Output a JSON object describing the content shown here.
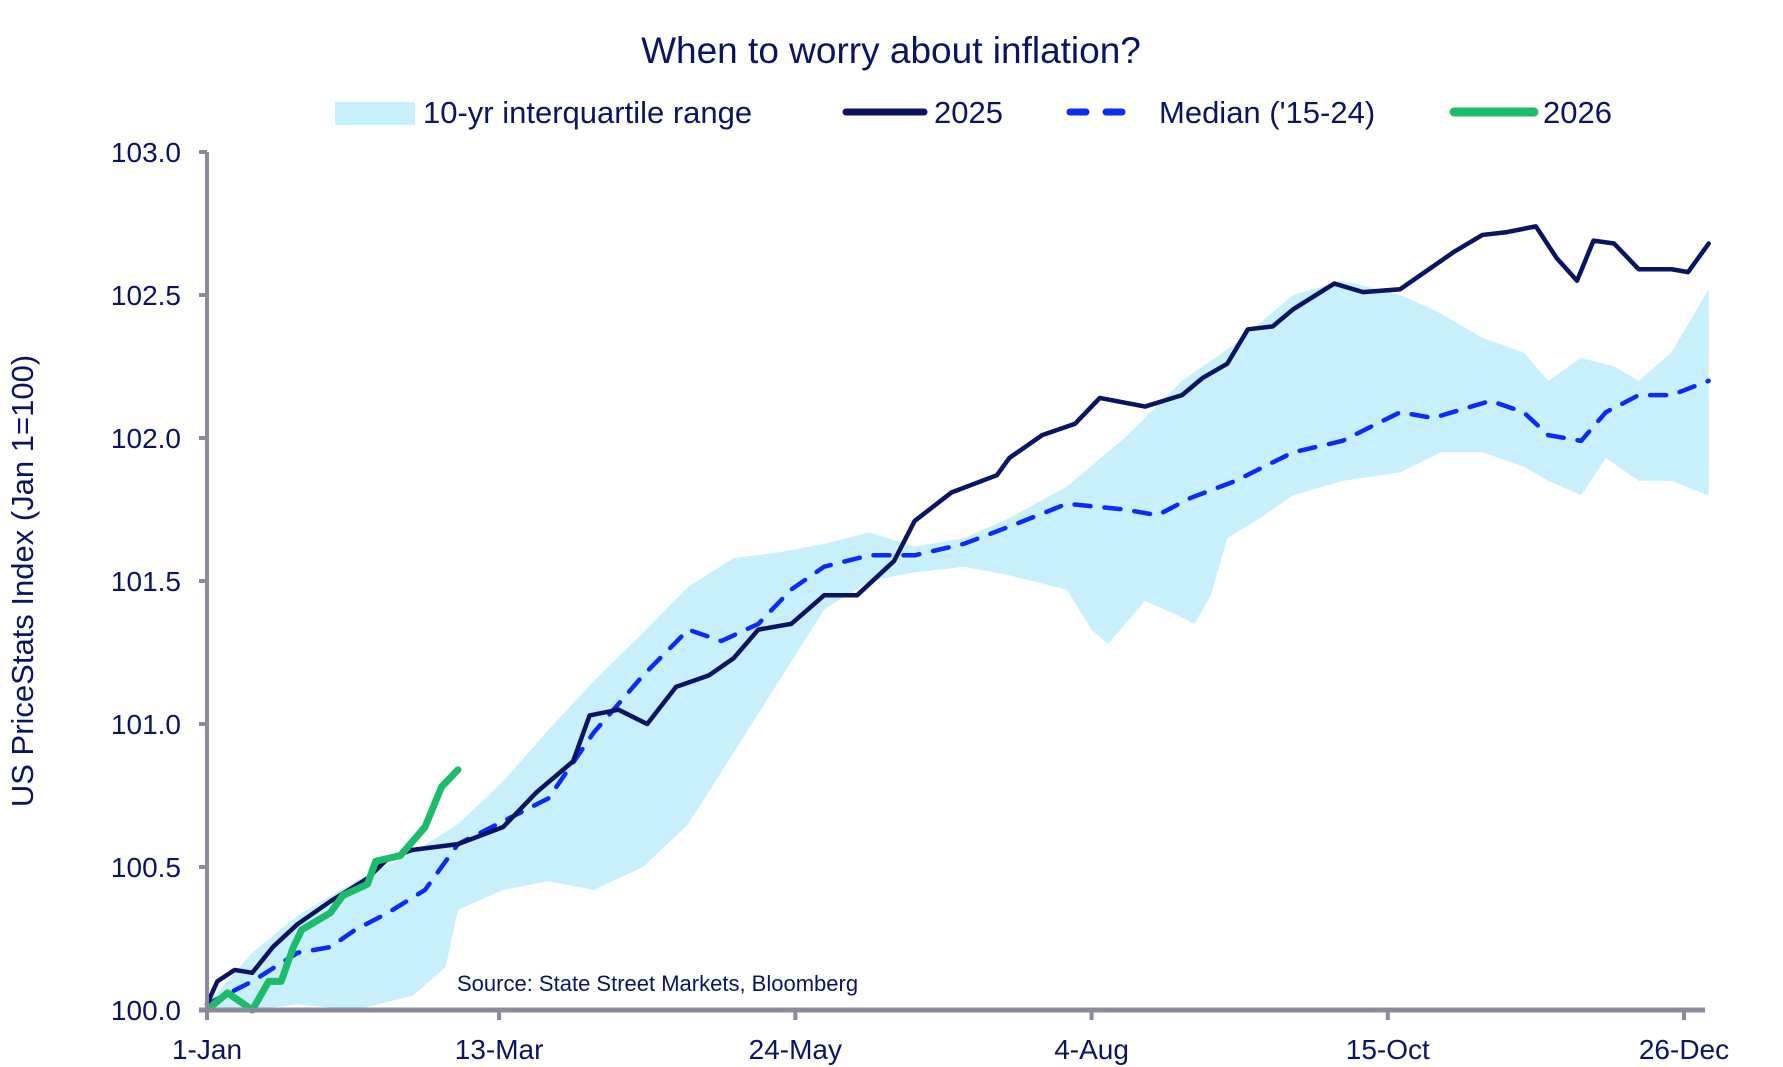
{
  "chart_data": {
    "type": "line",
    "title": "When to worry about inflation?",
    "ylabel": "US PriceStats Index (Jan 1=100)",
    "xlabel": "",
    "ylim": [
      100,
      103
    ],
    "xlim_days": [
      0,
      365
    ],
    "yticks": [
      "100.0",
      "100.5",
      "101.0",
      "101.5",
      "102.0",
      "102.5",
      "103.0"
    ],
    "ytick_values": [
      100,
      100.5,
      101,
      101.5,
      102,
      102.5,
      103
    ],
    "xticks": [
      "1-Jan",
      "13-Mar",
      "24-May",
      "4-Aug",
      "15-Oct",
      "26-Dec"
    ],
    "xtick_days": [
      0,
      71,
      143,
      215,
      287,
      359
    ],
    "source": "Source: State Street Markets, Bloomberg",
    "legend_position": "top",
    "legend": [
      "10-yr interquartile range",
      "2025",
      "Median ('15-24)",
      "2026"
    ],
    "colors": {
      "band": "#c8effc",
      "y2025": "#0b1461",
      "median": "#0a2cf5",
      "y2026": "#1dbb6a",
      "axis": "#8a8a9a"
    },
    "band": {
      "upper": [
        [
          0,
          100.02
        ],
        [
          11,
          100.2
        ],
        [
          22,
          100.33
        ],
        [
          36,
          100.45
        ],
        [
          50,
          100.55
        ],
        [
          61,
          100.65
        ],
        [
          72,
          100.8
        ],
        [
          83,
          100.98
        ],
        [
          94,
          101.15
        ],
        [
          106,
          101.32
        ],
        [
          117,
          101.48
        ],
        [
          128,
          101.58
        ],
        [
          139,
          101.6
        ],
        [
          150,
          101.63
        ],
        [
          161,
          101.67
        ],
        [
          172,
          101.62
        ],
        [
          184,
          101.65
        ],
        [
          195,
          101.72
        ],
        [
          209,
          101.83
        ],
        [
          223,
          102.0
        ],
        [
          237,
          102.2
        ],
        [
          250,
          102.33
        ],
        [
          264,
          102.5
        ],
        [
          276,
          102.55
        ],
        [
          290,
          102.5
        ],
        [
          298,
          102.45
        ],
        [
          310,
          102.35
        ],
        [
          320,
          102.3
        ],
        [
          326,
          102.2
        ],
        [
          334,
          102.28
        ],
        [
          342,
          102.25
        ],
        [
          348,
          102.2
        ],
        [
          356,
          102.3
        ],
        [
          365,
          102.52
        ]
      ],
      "lower": [
        [
          0,
          100.0
        ],
        [
          11,
          100.0
        ],
        [
          22,
          100.02
        ],
        [
          36,
          100.0
        ],
        [
          50,
          100.05
        ],
        [
          58,
          100.15
        ],
        [
          61,
          100.35
        ],
        [
          72,
          100.42
        ],
        [
          83,
          100.45
        ],
        [
          94,
          100.42
        ],
        [
          106,
          100.5
        ],
        [
          117,
          100.65
        ],
        [
          128,
          100.9
        ],
        [
          139,
          101.15
        ],
        [
          150,
          101.4
        ],
        [
          161,
          101.5
        ],
        [
          172,
          101.53
        ],
        [
          184,
          101.55
        ],
        [
          195,
          101.52
        ],
        [
          209,
          101.47
        ],
        [
          215,
          101.33
        ],
        [
          219,
          101.28
        ],
        [
          228,
          101.43
        ],
        [
          236,
          101.38
        ],
        [
          240,
          101.35
        ],
        [
          244,
          101.45
        ],
        [
          248,
          101.65
        ],
        [
          256,
          101.72
        ],
        [
          264,
          101.8
        ],
        [
          276,
          101.85
        ],
        [
          290,
          101.88
        ],
        [
          300,
          101.95
        ],
        [
          310,
          101.95
        ],
        [
          320,
          101.9
        ],
        [
          326,
          101.85
        ],
        [
          334,
          101.8
        ],
        [
          340,
          101.93
        ],
        [
          348,
          101.85
        ],
        [
          356,
          101.85
        ],
        [
          365,
          101.8
        ]
      ]
    },
    "series": [
      {
        "name": "2025",
        "points": [
          [
            0,
            100.02
          ],
          [
            2.5,
            100.1
          ],
          [
            6.7,
            100.14
          ],
          [
            11,
            100.13
          ],
          [
            16,
            100.22
          ],
          [
            22,
            100.3
          ],
          [
            30,
            100.38
          ],
          [
            39,
            100.46
          ],
          [
            44,
            100.53
          ],
          [
            50,
            100.56
          ],
          [
            61,
            100.58
          ],
          [
            72,
            100.64
          ],
          [
            80,
            100.76
          ],
          [
            89,
            100.87
          ],
          [
            93,
            101.03
          ],
          [
            100,
            101.05
          ],
          [
            107,
            101.0
          ],
          [
            114,
            101.13
          ],
          [
            122,
            101.17
          ],
          [
            128,
            101.23
          ],
          [
            134,
            101.33
          ],
          [
            142,
            101.35
          ],
          [
            150,
            101.45
          ],
          [
            158,
            101.45
          ],
          [
            167,
            101.57
          ],
          [
            172,
            101.71
          ],
          [
            181,
            101.81
          ],
          [
            192,
            101.87
          ],
          [
            195,
            101.93
          ],
          [
            203,
            102.01
          ],
          [
            211,
            102.05
          ],
          [
            217,
            102.14
          ],
          [
            228,
            102.11
          ],
          [
            237,
            102.15
          ],
          [
            242,
            102.21
          ],
          [
            248,
            102.26
          ],
          [
            253,
            102.38
          ],
          [
            259,
            102.39
          ],
          [
            264,
            102.45
          ],
          [
            274,
            102.54
          ],
          [
            281,
            102.51
          ],
          [
            290,
            102.52
          ],
          [
            296,
            102.58
          ],
          [
            303,
            102.65
          ],
          [
            310,
            102.71
          ],
          [
            316,
            102.72
          ],
          [
            323,
            102.74
          ],
          [
            328,
            102.63
          ],
          [
            333,
            102.55
          ],
          [
            337,
            102.69
          ],
          [
            342,
            102.68
          ],
          [
            348,
            102.59
          ],
          [
            356,
            102.59
          ],
          [
            360,
            102.58
          ],
          [
            365,
            102.68
          ]
        ]
      },
      {
        "name": "Median ('15-24)",
        "points": [
          [
            0,
            100.02
          ],
          [
            11,
            100.1
          ],
          [
            22,
            100.2
          ],
          [
            30,
            100.22
          ],
          [
            36,
            100.28
          ],
          [
            44,
            100.34
          ],
          [
            53,
            100.42
          ],
          [
            61,
            100.58
          ],
          [
            72,
            100.66
          ],
          [
            83,
            100.74
          ],
          [
            94,
            100.97
          ],
          [
            106,
            101.17
          ],
          [
            117,
            101.33
          ],
          [
            125,
            101.29
          ],
          [
            134,
            101.35
          ],
          [
            142,
            101.47
          ],
          [
            150,
            101.55
          ],
          [
            161,
            101.59
          ],
          [
            172,
            101.59
          ],
          [
            184,
            101.63
          ],
          [
            195,
            101.69
          ],
          [
            209,
            101.77
          ],
          [
            223,
            101.75
          ],
          [
            231,
            101.73
          ],
          [
            239,
            101.79
          ],
          [
            250,
            101.85
          ],
          [
            264,
            101.95
          ],
          [
            276,
            101.99
          ],
          [
            290,
            102.09
          ],
          [
            298,
            102.07
          ],
          [
            312,
            102.13
          ],
          [
            320,
            102.09
          ],
          [
            326,
            102.01
          ],
          [
            334,
            101.99
          ],
          [
            340,
            102.09
          ],
          [
            348,
            102.15
          ],
          [
            356,
            102.15
          ],
          [
            365,
            102.2
          ]
        ]
      },
      {
        "name": "2026",
        "points": [
          [
            0,
            100.0
          ],
          [
            5,
            100.06
          ],
          [
            9,
            100.02
          ],
          [
            11,
            100.0
          ],
          [
            15,
            100.1
          ],
          [
            18,
            100.1
          ],
          [
            21,
            100.22
          ],
          [
            23,
            100.28
          ],
          [
            30,
            100.34
          ],
          [
            33,
            100.4
          ],
          [
            39,
            100.44
          ],
          [
            41,
            100.52
          ],
          [
            47,
            100.54
          ],
          [
            53,
            100.64
          ],
          [
            57,
            100.78
          ],
          [
            61,
            100.84
          ]
        ]
      }
    ]
  }
}
